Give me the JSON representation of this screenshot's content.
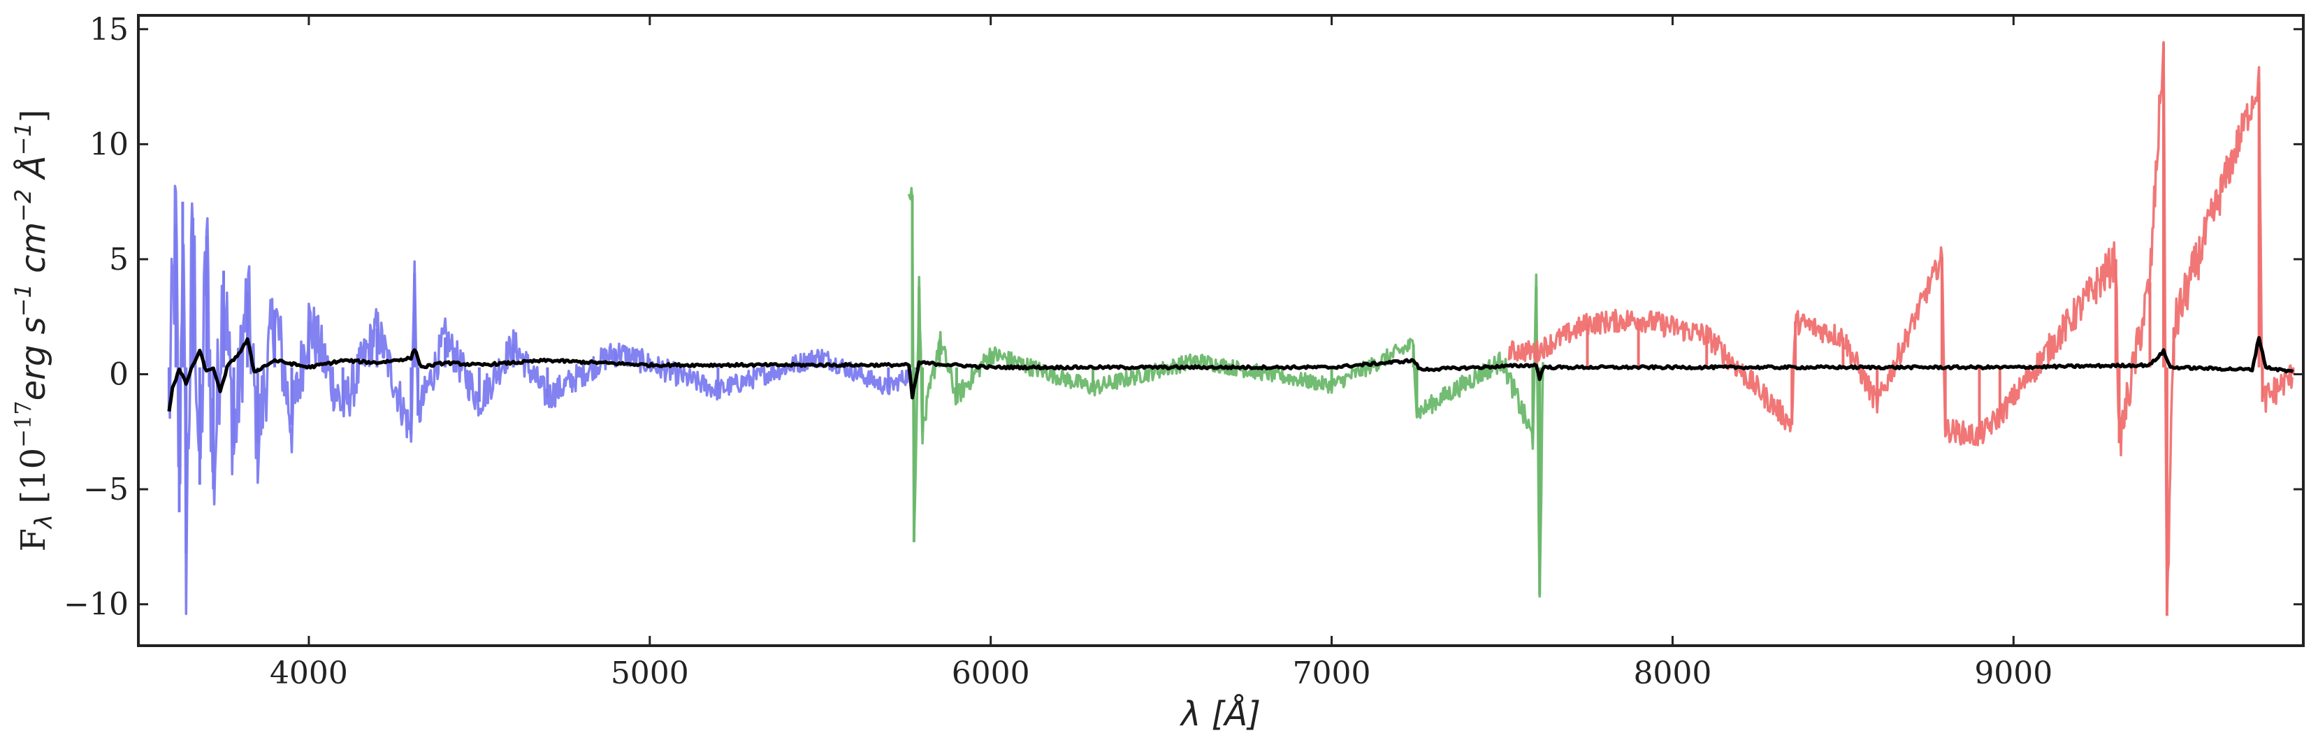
{
  "chart_data": {
    "type": "line",
    "title": "",
    "xlabel": "λ [Å]",
    "ylabel_parts": {
      "prefix": "F",
      "sub": "λ",
      "open": " [10",
      "exp1": "−17",
      "unit1": "erg s",
      "exp2": "−1",
      "unit2": " cm",
      "exp3": "−2",
      "unit3": " Å",
      "exp4": "−1",
      "close": "]"
    },
    "xlim": [
      3500,
      9850
    ],
    "ylim": [
      -11.8,
      15.6
    ],
    "xticks": [
      4000,
      5000,
      6000,
      7000,
      8000,
      9000
    ],
    "xtick_labels": [
      "4000",
      "5000",
      "6000",
      "7000",
      "8000",
      "9000"
    ],
    "yticks": [
      -10,
      -5,
      0,
      5,
      10,
      15
    ],
    "ytick_labels": [
      "−10",
      "−5",
      "0",
      "5",
      "10",
      "15"
    ],
    "grid": false,
    "legend": "none",
    "series": [
      {
        "color": "#7b7bf0",
        "x_range": [
          3590,
          5780
        ],
        "anchors": [
          [
            3590,
            -1.5
          ],
          [
            3610,
            6.5
          ],
          [
            3620,
            -6.0
          ],
          [
            3630,
            7.5
          ],
          [
            3640,
            -7.8
          ],
          [
            3660,
            6.8
          ],
          [
            3680,
            -4.8
          ],
          [
            3700,
            6.0
          ],
          [
            3720,
            -5.0
          ],
          [
            3750,
            4.5
          ],
          [
            3780,
            -3.2
          ],
          [
            3820,
            3.6
          ],
          [
            3850,
            -3.0
          ],
          [
            3900,
            2.8
          ],
          [
            3950,
            -2.2
          ],
          [
            4000,
            2.3
          ],
          [
            4100,
            -1.5
          ],
          [
            4200,
            2.0
          ],
          [
            4300,
            -2.6
          ],
          [
            4310,
            4.4
          ],
          [
            4320,
            -1.8
          ],
          [
            4400,
            1.6
          ],
          [
            4500,
            -1.2
          ],
          [
            4600,
            1.3
          ],
          [
            4700,
            -1.0
          ],
          [
            4900,
            1.0
          ],
          [
            5200,
            -0.7
          ],
          [
            5500,
            0.8
          ],
          [
            5700,
            -0.6
          ],
          [
            5780,
            0.2
          ]
        ],
        "noise_envelope": [
          [
            3590,
            5.5
          ],
          [
            3700,
            4.8
          ],
          [
            3800,
            3.6
          ],
          [
            3950,
            2.4
          ],
          [
            4100,
            1.7
          ],
          [
            4300,
            1.4
          ],
          [
            4500,
            1.2
          ],
          [
            4800,
            0.9
          ],
          [
            5200,
            0.7
          ],
          [
            5780,
            0.6
          ]
        ]
      },
      {
        "color": "#6cb86c",
        "x_range": [
          5760,
          7620
        ],
        "anchors": [
          [
            5770,
            7.8
          ],
          [
            5775,
            -7.3
          ],
          [
            5790,
            3.8
          ],
          [
            5800,
            -2.5
          ],
          [
            5850,
            1.5
          ],
          [
            5900,
            -1.0
          ],
          [
            6000,
            0.9
          ],
          [
            6300,
            -0.6
          ],
          [
            6600,
            0.6
          ],
          [
            7000,
            -0.5
          ],
          [
            7240,
            1.3
          ],
          [
            7250,
            -1.7
          ],
          [
            7500,
            0.6
          ],
          [
            7590,
            -2.8
          ],
          [
            7600,
            3.8
          ],
          [
            7610,
            -9.6
          ],
          [
            7620,
            0.2
          ]
        ],
        "noise_envelope": [
          [
            5760,
            0.9
          ],
          [
            6000,
            0.6
          ],
          [
            7000,
            0.5
          ],
          [
            7500,
            0.7
          ],
          [
            7620,
            0.9
          ]
        ]
      },
      {
        "color": "#f07070",
        "x_range": [
          7520,
          9820
        ],
        "anchors": [
          [
            7600,
            1.0
          ],
          [
            7750,
            2.2
          ],
          [
            7900,
            2.4
          ],
          [
            8100,
            1.7
          ],
          [
            8350,
            -2.2
          ],
          [
            8360,
            2.3
          ],
          [
            8500,
            1.6
          ],
          [
            8600,
            -1.3
          ],
          [
            8790,
            5.1
          ],
          [
            8800,
            -2.4
          ],
          [
            8900,
            -2.7
          ],
          [
            8960,
            -1.8
          ],
          [
            9300,
            5.0
          ],
          [
            9310,
            -3.0
          ],
          [
            9400,
            4.0
          ],
          [
            9440,
            14.4
          ],
          [
            9450,
            -10.5
          ],
          [
            9470,
            2.0
          ],
          [
            9720,
            12.7
          ],
          [
            9730,
            -1.2
          ],
          [
            9820,
            0.0
          ]
        ],
        "noise_envelope": [
          [
            7520,
            0.7
          ],
          [
            8000,
            0.8
          ],
          [
            8500,
            0.8
          ],
          [
            9000,
            0.8
          ],
          [
            9300,
            1.4
          ],
          [
            9500,
            1.6
          ],
          [
            9820,
            0.9
          ]
        ]
      },
      {
        "color": "#000000",
        "x_range": [
          3590,
          9820
        ],
        "anchors": [
          [
            3590,
            -1.6
          ],
          [
            3600,
            -0.6
          ],
          [
            3620,
            0.2
          ],
          [
            3640,
            -0.4
          ],
          [
            3660,
            0.4
          ],
          [
            3680,
            1.0
          ],
          [
            3700,
            0.1
          ],
          [
            3720,
            0.3
          ],
          [
            3740,
            -0.8
          ],
          [
            3760,
            0.3
          ],
          [
            3800,
            1.0
          ],
          [
            3820,
            1.5
          ],
          [
            3840,
            0.1
          ],
          [
            3900,
            0.6
          ],
          [
            4000,
            0.3
          ],
          [
            4100,
            0.6
          ],
          [
            4200,
            0.5
          ],
          [
            4300,
            0.7
          ],
          [
            4310,
            1.1
          ],
          [
            4330,
            0.3
          ],
          [
            4400,
            0.5
          ],
          [
            4500,
            0.4
          ],
          [
            4700,
            0.6
          ],
          [
            5000,
            0.4
          ],
          [
            5500,
            0.4
          ],
          [
            5760,
            0.4
          ],
          [
            5770,
            -1.0
          ],
          [
            5790,
            0.5
          ],
          [
            6000,
            0.3
          ],
          [
            7000,
            0.3
          ],
          [
            7240,
            0.6
          ],
          [
            7260,
            0.2
          ],
          [
            7600,
            0.4
          ],
          [
            7610,
            -0.2
          ],
          [
            7620,
            0.3
          ],
          [
            8000,
            0.3
          ],
          [
            9000,
            0.3
          ],
          [
            9400,
            0.4
          ],
          [
            9440,
            1.0
          ],
          [
            9460,
            0.3
          ],
          [
            9700,
            0.2
          ],
          [
            9720,
            1.6
          ],
          [
            9740,
            0.3
          ],
          [
            9820,
            0.1
          ]
        ]
      }
    ]
  }
}
